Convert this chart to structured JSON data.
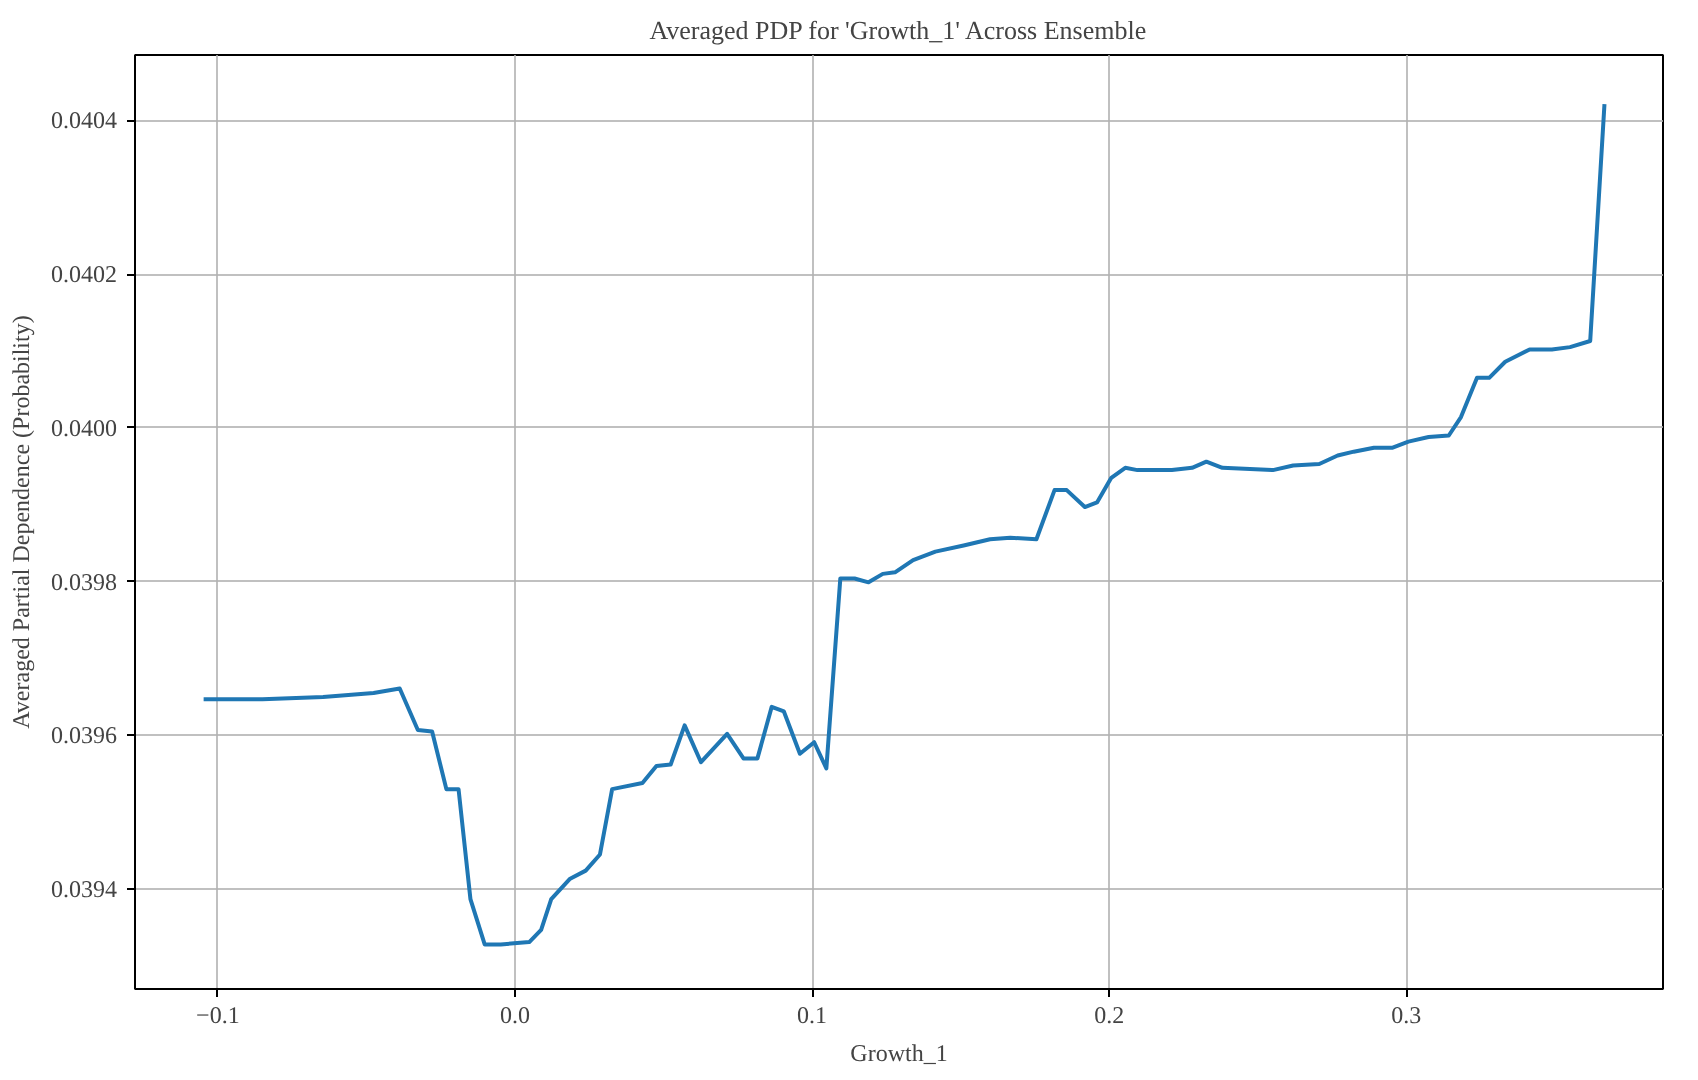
{
  "chart_data": {
    "type": "line",
    "title": "Averaged PDP for 'Growth_1' Across Ensemble",
    "xlabel": "Growth_1",
    "ylabel": "Averaged Partial Dependence (Probability)",
    "x": [
      -0.1048,
      -0.085,
      -0.0646,
      -0.0476,
      -0.0388,
      -0.0327,
      -0.0279,
      -0.0231,
      -0.019,
      -0.015,
      -0.0102,
      -0.0048,
      0.0048,
      0.0088,
      0.0122,
      0.0184,
      0.0238,
      0.0286,
      0.0327,
      0.0429,
      0.0476,
      0.0524,
      0.0571,
      0.0626,
      0.0714,
      0.0769,
      0.0816,
      0.0864,
      0.0905,
      0.0959,
      0.1007,
      0.1048,
      0.1095,
      0.1143,
      0.119,
      0.1238,
      0.1279,
      0.134,
      0.1415,
      0.151,
      0.1599,
      0.1667,
      0.1755,
      0.1816,
      0.1857,
      0.1918,
      0.1959,
      0.2007,
      0.2054,
      0.2095,
      0.2211,
      0.2279,
      0.2327,
      0.2381,
      0.2551,
      0.2619,
      0.2707,
      0.2769,
      0.2823,
      0.2891,
      0.2952,
      0.3007,
      0.3075,
      0.3143,
      0.3184,
      0.3238,
      0.3279,
      0.3333,
      0.3415,
      0.349,
      0.3551,
      0.3619,
      0.3667
    ],
    "series": [
      {
        "color": "#1f77b4",
        "values": [
          0.039647,
          0.039647,
          0.03965,
          0.039655,
          0.039661,
          0.039607,
          0.039605,
          0.03953,
          0.03953,
          0.039387,
          0.039328,
          0.039328,
          0.039331,
          0.039347,
          0.039387,
          0.039413,
          0.039424,
          0.039445,
          0.03953,
          0.039538,
          0.03956,
          0.039562,
          0.039613,
          0.039565,
          0.039602,
          0.03957,
          0.03957,
          0.039637,
          0.039631,
          0.039576,
          0.039591,
          0.039557,
          0.039804,
          0.039804,
          0.039799,
          0.03981,
          0.039812,
          0.039828,
          0.039839,
          0.039847,
          0.039855,
          0.039857,
          0.039855,
          0.039919,
          0.039919,
          0.039897,
          0.039903,
          0.039935,
          0.039948,
          0.039945,
          0.039945,
          0.039948,
          0.039956,
          0.039948,
          0.039945,
          0.039951,
          0.039953,
          0.039964,
          0.039969,
          0.039974,
          0.039974,
          0.039982,
          0.039988,
          0.03999,
          0.040014,
          0.040065,
          0.040065,
          0.040086,
          0.040102,
          0.040102,
          0.040105,
          0.040113,
          0.040421
        ]
      }
    ],
    "xlim": [
      -0.1279,
      0.3864
    ],
    "ylim": [
      0.03927,
      0.040485
    ],
    "xticks": [
      {
        "value": -0.1,
        "label": "−0.1"
      },
      {
        "value": 0.0,
        "label": "0.0"
      },
      0.1,
      0.2,
      0.3
    ],
    "yticks": [
      0.0394,
      0.0396,
      0.0398,
      {
        "value": 0.04,
        "label": "0.0400"
      },
      0.0402,
      0.0404
    ],
    "grid": true
  }
}
